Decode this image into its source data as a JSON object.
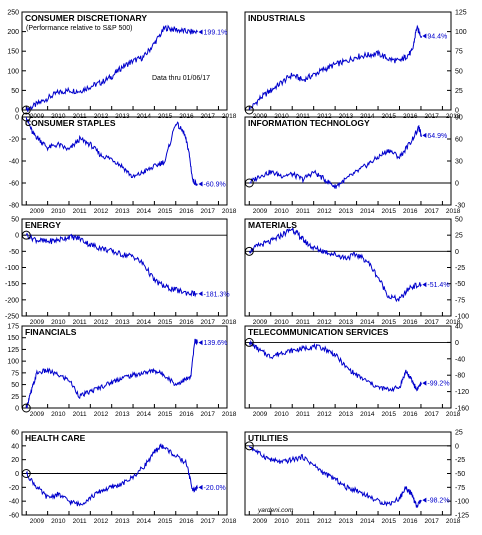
{
  "note": "Data thru 01/06/17",
  "watermark": "yardeni.com",
  "colors": {
    "line": "#0000cc",
    "frame": "#000000",
    "zero": "#000000"
  },
  "chart_data": [
    {
      "type": "line",
      "title": "CONSUMER DISCRETIONARY",
      "subtitle": "(Performance relative to S&P 500)",
      "end_label": "199.1%",
      "ylim": [
        0,
        250
      ],
      "yticks": [
        0,
        50,
        100,
        150,
        200,
        250
      ],
      "yaxis_side": "left",
      "xticks": [
        "2009",
        "2010",
        "2011",
        "2012",
        "2013",
        "2014",
        "2015",
        "2016",
        "2017",
        "2018"
      ],
      "zero_line": false,
      "series": [
        {
          "x": [
            2009.0,
            2009.5,
            2010.0,
            2010.5,
            2011.0,
            2011.5,
            2012.0,
            2012.5,
            2013.0,
            2013.5,
            2014.0,
            2014.5,
            2015.0,
            2015.5,
            2016.0,
            2016.5,
            2017.02
          ],
          "values": [
            0,
            15,
            30,
            45,
            50,
            48,
            60,
            70,
            85,
            110,
            125,
            135,
            170,
            210,
            205,
            200,
            199.1
          ]
        }
      ]
    },
    {
      "type": "line",
      "title": "INDUSTRIALS",
      "end_label": "94.4%",
      "ylim": [
        0,
        125
      ],
      "yticks": [
        0,
        25,
        50,
        75,
        100,
        125
      ],
      "yaxis_side": "right",
      "xticks": [
        "2009",
        "2010",
        "2011",
        "2012",
        "2013",
        "2014",
        "2015",
        "2016",
        "2017",
        "2018"
      ],
      "zero_line": false,
      "series": [
        {
          "x": [
            2009.0,
            2009.5,
            2010.0,
            2010.5,
            2011.0,
            2011.5,
            2012.0,
            2012.5,
            2013.0,
            2013.5,
            2014.0,
            2014.5,
            2015.0,
            2015.5,
            2016.0,
            2016.3,
            2016.6,
            2016.8,
            2017.02
          ],
          "values": [
            0,
            15,
            25,
            35,
            45,
            38,
            45,
            52,
            58,
            62,
            68,
            70,
            72,
            65,
            62,
            68,
            75,
            105,
            94.4
          ]
        }
      ]
    },
    {
      "type": "line",
      "title": "CONSUMER STAPLES",
      "end_label": "-60.9%",
      "ylim": [
        -80,
        0
      ],
      "yticks": [
        -80,
        -60,
        -40,
        -20,
        0
      ],
      "yaxis_side": "left",
      "xticks": [
        "2009",
        "2010",
        "2011",
        "2012",
        "2013",
        "2014",
        "2015",
        "2016",
        "2017",
        "2018"
      ],
      "zero_line": true,
      "series": [
        {
          "x": [
            2009.0,
            2009.3,
            2009.6,
            2010.0,
            2010.5,
            2011.0,
            2011.5,
            2012.0,
            2012.5,
            2013.0,
            2013.5,
            2014.0,
            2014.5,
            2015.0,
            2015.5,
            2016.0,
            2016.4,
            2016.6,
            2016.8,
            2017.02
          ],
          "values": [
            0,
            -15,
            -20,
            -28,
            -25,
            -30,
            -20,
            -25,
            -35,
            -38,
            -45,
            -55,
            -50,
            -45,
            -40,
            -5,
            -15,
            -30,
            -58,
            -60.9
          ]
        }
      ]
    },
    {
      "type": "line",
      "title": "INFORMATION TECHNOLOGY",
      "end_label": "64.9%",
      "ylim": [
        -30,
        90
      ],
      "yticks": [
        -30,
        0,
        30,
        60,
        90
      ],
      "yaxis_side": "right",
      "xticks": [
        "2009",
        "2010",
        "2011",
        "2012",
        "2013",
        "2014",
        "2015",
        "2016",
        "2017",
        "2018"
      ],
      "zero_line": true,
      "series": [
        {
          "x": [
            2009.0,
            2009.5,
            2010.0,
            2010.5,
            2011.0,
            2011.5,
            2012.0,
            2012.5,
            2013.0,
            2013.5,
            2014.0,
            2014.5,
            2015.0,
            2015.5,
            2016.0,
            2016.5,
            2016.9,
            2017.02
          ],
          "values": [
            0,
            10,
            15,
            10,
            12,
            5,
            15,
            5,
            -5,
            5,
            15,
            25,
            35,
            45,
            35,
            55,
            75,
            64.9
          ]
        }
      ]
    },
    {
      "type": "line",
      "title": "ENERGY",
      "end_label": "-181.3%",
      "ylim": [
        -250,
        50
      ],
      "yticks": [
        -250,
        -200,
        -150,
        -100,
        -50,
        0,
        50
      ],
      "yaxis_side": "left",
      "xticks": [
        "2009",
        "2010",
        "2011",
        "2012",
        "2013",
        "2014",
        "2015",
        "2016",
        "2017",
        "2018"
      ],
      "zero_line": true,
      "series": [
        {
          "x": [
            2009.0,
            2009.5,
            2010.0,
            2010.5,
            2011.0,
            2011.5,
            2012.0,
            2012.5,
            2013.0,
            2013.5,
            2014.0,
            2014.5,
            2015.0,
            2015.5,
            2016.0,
            2016.5,
            2017.02
          ],
          "values": [
            0,
            -15,
            -20,
            -15,
            -5,
            -10,
            -30,
            -40,
            -50,
            -60,
            -65,
            -90,
            -140,
            -160,
            -170,
            -178,
            -181.3
          ]
        }
      ]
    },
    {
      "type": "line",
      "title": "MATERIALS",
      "end_label": "-51.4%",
      "ylim": [
        -100,
        50
      ],
      "yticks": [
        -100,
        -75,
        -50,
        -25,
        0,
        25,
        50
      ],
      "yaxis_side": "right",
      "xticks": [
        "2009",
        "2010",
        "2011",
        "2012",
        "2013",
        "2014",
        "2015",
        "2016",
        "2017",
        "2018"
      ],
      "zero_line": true,
      "series": [
        {
          "x": [
            2009.0,
            2009.5,
            2010.0,
            2010.5,
            2011.0,
            2011.3,
            2011.6,
            2012.0,
            2012.5,
            2013.0,
            2013.5,
            2014.0,
            2014.5,
            2015.0,
            2015.5,
            2016.0,
            2016.5,
            2017.02
          ],
          "values": [
            0,
            10,
            15,
            25,
            35,
            25,
            15,
            5,
            0,
            -5,
            -10,
            -5,
            -15,
            -40,
            -70,
            -75,
            -55,
            -51.4
          ]
        }
      ]
    },
    {
      "type": "line",
      "title": "FINANCIALS",
      "end_label": "139.6%",
      "ylim": [
        0,
        175
      ],
      "yticks": [
        0,
        25,
        50,
        75,
        100,
        125,
        150,
        175
      ],
      "yaxis_side": "left",
      "xticks": [
        "2009",
        "2010",
        "2011",
        "2012",
        "2013",
        "2014",
        "2015",
        "2016",
        "2017",
        "2018"
      ],
      "zero_line": false,
      "series": [
        {
          "x": [
            2009.0,
            2009.2,
            2009.5,
            2010.0,
            2010.5,
            2011.0,
            2011.5,
            2012.0,
            2012.5,
            2013.0,
            2013.5,
            2014.0,
            2014.5,
            2015.0,
            2015.5,
            2016.0,
            2016.4,
            2016.7,
            2016.9,
            2017.02
          ],
          "values": [
            0,
            30,
            75,
            80,
            70,
            60,
            25,
            35,
            45,
            55,
            65,
            70,
            75,
            80,
            70,
            50,
            60,
            65,
            145,
            139.6
          ]
        }
      ]
    },
    {
      "type": "line",
      "title": "TELECOMMUNICATION SERVICES",
      "end_label": "-99.2%",
      "ylim": [
        -160,
        40
      ],
      "yticks": [
        -160,
        -120,
        -80,
        -40,
        0,
        40
      ],
      "yaxis_side": "right",
      "xticks": [
        "2009",
        "2010",
        "2011",
        "2012",
        "2013",
        "2014",
        "2015",
        "2016",
        "2017",
        "2018"
      ],
      "zero_line": true,
      "series": [
        {
          "x": [
            2009.0,
            2009.5,
            2010.0,
            2010.5,
            2011.0,
            2011.5,
            2012.0,
            2012.5,
            2013.0,
            2013.5,
            2014.0,
            2014.5,
            2015.0,
            2015.5,
            2016.0,
            2016.3,
            2016.6,
            2016.8,
            2017.02
          ],
          "values": [
            0,
            -20,
            -35,
            -25,
            -20,
            -15,
            -10,
            -15,
            -30,
            -60,
            -80,
            -95,
            -110,
            -115,
            -110,
            -70,
            -95,
            -115,
            -99.2
          ]
        }
      ]
    },
    {
      "type": "line",
      "title": "HEALTH CARE",
      "end_label": "-20.0%",
      "ylim": [
        -60,
        60
      ],
      "yticks": [
        -60,
        -40,
        -20,
        0,
        20,
        40,
        60
      ],
      "yaxis_side": "left",
      "xticks": [
        "2009",
        "2010",
        "2011",
        "2012",
        "2013",
        "2014",
        "2015",
        "2016",
        "2017",
        "2018"
      ],
      "zero_line": true,
      "series": [
        {
          "x": [
            2009.0,
            2009.5,
            2010.0,
            2010.5,
            2011.0,
            2011.5,
            2012.0,
            2012.5,
            2013.0,
            2013.5,
            2014.0,
            2014.5,
            2015.0,
            2015.3,
            2015.6,
            2016.0,
            2016.5,
            2016.8,
            2017.02
          ],
          "values": [
            0,
            -20,
            -35,
            -30,
            -40,
            -45,
            -35,
            -25,
            -20,
            -15,
            -5,
            10,
            30,
            40,
            35,
            25,
            15,
            -25,
            -20.0
          ]
        }
      ]
    },
    {
      "type": "line",
      "title": "UTILITIES",
      "end_label": "-98.2%",
      "ylim": [
        -125,
        25
      ],
      "yticks": [
        -125,
        -100,
        -75,
        -50,
        -25,
        0,
        25
      ],
      "yaxis_side": "right",
      "xticks": [
        "2009",
        "2010",
        "2011",
        "2012",
        "2013",
        "2014",
        "2015",
        "2016",
        "2017",
        "2018"
      ],
      "zero_line": true,
      "series": [
        {
          "x": [
            2009.0,
            2009.5,
            2010.0,
            2010.5,
            2011.0,
            2011.5,
            2012.0,
            2012.5,
            2013.0,
            2013.5,
            2014.0,
            2014.5,
            2015.0,
            2015.5,
            2016.0,
            2016.3,
            2016.6,
            2016.8,
            2017.02
          ],
          "values": [
            0,
            -15,
            -25,
            -30,
            -25,
            -20,
            -35,
            -50,
            -60,
            -75,
            -80,
            -90,
            -100,
            -105,
            -95,
            -75,
            -90,
            -110,
            -98.2
          ]
        }
      ]
    }
  ]
}
